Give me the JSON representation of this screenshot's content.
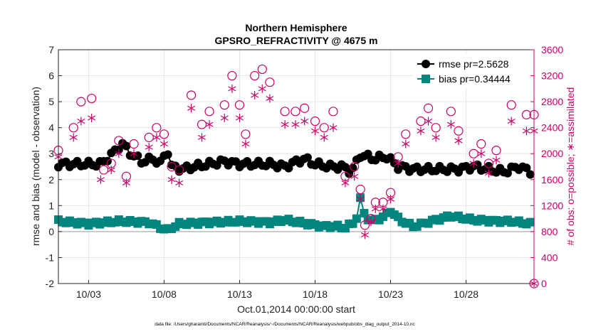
{
  "chart_data": {
    "type": "line",
    "title": "Northern Hemisphere",
    "subtitle": "GPSRO_REFRACTIVITY @ 4675 m",
    "xlabel": "Oct.01,2014 00:00:00 start",
    "ylabel": "rmse and bias (model - observation)",
    "y2label": "# of obs: o=possible; ∗=assimilated",
    "footnote": "data file: /Users/gharamti/Documents/NCAR/Reanalysis/~/Documents/NCAR/Reanalysis/webpub/obs_diag_output_2014-10.nc",
    "x_range": [
      1.0,
      32.5
    ],
    "ylim": [
      -2,
      7
    ],
    "y2lim": [
      0,
      3600
    ],
    "x_ticks": [
      3,
      8,
      13,
      18,
      23,
      28
    ],
    "x_tick_labels": [
      "10/03",
      "10/08",
      "10/13",
      "10/18",
      "10/23",
      "10/28"
    ],
    "y_ticks": [
      -2,
      -1,
      0,
      1,
      2,
      3,
      4,
      5,
      6,
      7
    ],
    "y_tick_labels": [
      "-2",
      "-1",
      "0",
      "1",
      "2",
      "3",
      "4",
      "5",
      "6",
      "7"
    ],
    "y2_ticks": [
      0,
      400,
      800,
      1200,
      1600,
      2000,
      2400,
      2800,
      3200,
      3600
    ],
    "y2_tick_labels": [
      "0",
      "400",
      "800",
      "1200",
      "1600",
      "2000",
      "2400",
      "2800",
      "3200",
      "3600"
    ],
    "grid": true,
    "legend_position": "top-right",
    "legend": [
      "rmse pr=2.5628",
      "bias pr=0.34444"
    ],
    "series": [
      {
        "name": "rmse pr=2.5628",
        "axis": "left",
        "marker": "circle",
        "color": "#000000",
        "anchors": [
          [
            1,
            2.6
          ],
          [
            2,
            2.6
          ],
          [
            3,
            2.6
          ],
          [
            3.8,
            2.6
          ],
          [
            4.6,
            3.0
          ],
          [
            5.2,
            3.4
          ],
          [
            5.8,
            3.0
          ],
          [
            6.5,
            2.7
          ],
          [
            7.3,
            2.8
          ],
          [
            7.8,
            2.6
          ],
          [
            8.2,
            3.2
          ],
          [
            8.5,
            2.5
          ],
          [
            9.2,
            2.4
          ],
          [
            10,
            2.5
          ],
          [
            11,
            2.6
          ],
          [
            12,
            2.7
          ],
          [
            13,
            2.6
          ],
          [
            14,
            2.6
          ],
          [
            15,
            2.6
          ],
          [
            16,
            2.5
          ],
          [
            16.8,
            2.7
          ],
          [
            17.3,
            2.8
          ],
          [
            18,
            2.6
          ],
          [
            19,
            2.5
          ],
          [
            19.8,
            2.5
          ],
          [
            20.4,
            2.3
          ],
          [
            21,
            2.95
          ],
          [
            22,
            2.8
          ],
          [
            22.7,
            2.9
          ],
          [
            23.5,
            2.5
          ],
          [
            24.5,
            2.4
          ],
          [
            25.5,
            2.4
          ],
          [
            26.5,
            2.4
          ],
          [
            27.5,
            2.4
          ],
          [
            28.5,
            2.5
          ],
          [
            29.5,
            2.4
          ],
          [
            30.5,
            2.3
          ],
          [
            31.5,
            2.5
          ],
          [
            32.3,
            2.3
          ]
        ]
      },
      {
        "name": "bias pr=0.34444",
        "axis": "left",
        "marker": "square",
        "color": "#00867f",
        "anchors": [
          [
            1,
            0.4
          ],
          [
            3,
            0.3
          ],
          [
            5,
            0.4
          ],
          [
            7,
            0.35
          ],
          [
            8.2,
            0.05
          ],
          [
            9,
            0.3
          ],
          [
            11,
            0.35
          ],
          [
            13,
            0.4
          ],
          [
            15,
            0.35
          ],
          [
            16,
            0.45
          ],
          [
            17,
            0.35
          ],
          [
            18.5,
            0.2
          ],
          [
            19.5,
            0.2
          ],
          [
            20,
            0.15
          ],
          [
            20.7,
            0.4
          ],
          [
            21,
            1.25
          ],
          [
            21.3,
            0.6
          ],
          [
            21.7,
            0.4
          ],
          [
            22.5,
            0.55
          ],
          [
            23,
            0.8
          ],
          [
            23.6,
            0.45
          ],
          [
            24.5,
            0.2
          ],
          [
            26,
            0.45
          ],
          [
            27,
            0.6
          ],
          [
            28.5,
            0.45
          ],
          [
            30,
            0.4
          ],
          [
            31,
            0.4
          ],
          [
            32.3,
            0.3
          ]
        ]
      },
      {
        "name": "possible",
        "axis": "right",
        "marker": "open-circle",
        "color": "#cc0066",
        "anchors": [
          [
            1,
            2050
          ],
          [
            2,
            2400
          ],
          [
            2.5,
            2800
          ],
          [
            3.2,
            2850
          ],
          [
            4,
            1750
          ],
          [
            4.5,
            1850
          ],
          [
            5,
            2200
          ],
          [
            5.5,
            1650
          ],
          [
            6,
            2150
          ],
          [
            7,
            2250
          ],
          [
            7.5,
            2400
          ],
          [
            8,
            2300
          ],
          [
            8.5,
            1800
          ],
          [
            9,
            1750
          ],
          [
            9.8,
            2900
          ],
          [
            10.5,
            2450
          ],
          [
            11,
            2650
          ],
          [
            12,
            2750
          ],
          [
            12.5,
            3200
          ],
          [
            13,
            2750
          ],
          [
            13.4,
            2300
          ],
          [
            14,
            3200
          ],
          [
            14.5,
            3300
          ],
          [
            15,
            3100
          ],
          [
            16,
            2650
          ],
          [
            16.7,
            2650
          ],
          [
            17.3,
            2700
          ],
          [
            18,
            2500
          ],
          [
            18.6,
            2400
          ],
          [
            19.2,
            2650
          ],
          [
            20,
            1650
          ],
          [
            20.6,
            1800
          ],
          [
            21,
            1450
          ],
          [
            21.3,
            900
          ],
          [
            21.7,
            1000
          ],
          [
            22,
            1250
          ],
          [
            22.5,
            1250
          ],
          [
            23,
            1400
          ],
          [
            23.5,
            1950
          ],
          [
            24,
            2300
          ],
          [
            25,
            2500
          ],
          [
            25.5,
            2700
          ],
          [
            26,
            2400
          ],
          [
            27,
            2650
          ],
          [
            27.5,
            2350
          ],
          [
            28.5,
            2000
          ],
          [
            29,
            2150
          ],
          [
            29.5,
            1850
          ],
          [
            30,
            2050
          ],
          [
            31,
            2750
          ],
          [
            32,
            2600
          ],
          [
            32.5,
            2600
          ]
        ]
      },
      {
        "name": "assimilated",
        "axis": "right",
        "marker": "asterisk",
        "color": "#cc0066",
        "anchors": [
          [
            1,
            1950
          ],
          [
            2,
            2250
          ],
          [
            2.5,
            2500
          ],
          [
            3.2,
            2550
          ],
          [
            3.8,
            1600
          ],
          [
            4.5,
            1750
          ],
          [
            5,
            2000
          ],
          [
            5.5,
            1550
          ],
          [
            6,
            2000
          ],
          [
            7,
            2100
          ],
          [
            7.5,
            2250
          ],
          [
            8,
            2150
          ],
          [
            8.5,
            1600
          ],
          [
            9,
            1550
          ],
          [
            9.8,
            2700
          ],
          [
            10.5,
            2250
          ],
          [
            11,
            2450
          ],
          [
            12,
            2550
          ],
          [
            12.5,
            3000
          ],
          [
            13,
            2550
          ],
          [
            13.4,
            2150
          ],
          [
            14,
            2900
          ],
          [
            14.5,
            3000
          ],
          [
            15,
            2850
          ],
          [
            16,
            2450
          ],
          [
            16.7,
            2450
          ],
          [
            17.3,
            2500
          ],
          [
            18,
            2350
          ],
          [
            18.6,
            2250
          ],
          [
            19.2,
            2400
          ],
          [
            20,
            1550
          ],
          [
            20.6,
            1650
          ],
          [
            21,
            1300
          ],
          [
            21.3,
            750
          ],
          [
            21.7,
            950
          ],
          [
            22,
            1150
          ],
          [
            22.5,
            1150
          ],
          [
            23,
            1300
          ],
          [
            23.5,
            1850
          ],
          [
            24,
            2150
          ],
          [
            25,
            2350
          ],
          [
            25.5,
            2500
          ],
          [
            26,
            2250
          ],
          [
            27,
            2450
          ],
          [
            27.5,
            2200
          ],
          [
            28.5,
            1850
          ],
          [
            29,
            2000
          ],
          [
            29.5,
            1700
          ],
          [
            30,
            1900
          ],
          [
            31,
            2500
          ],
          [
            32,
            2350
          ],
          [
            32.5,
            2350
          ]
        ]
      }
    ]
  }
}
